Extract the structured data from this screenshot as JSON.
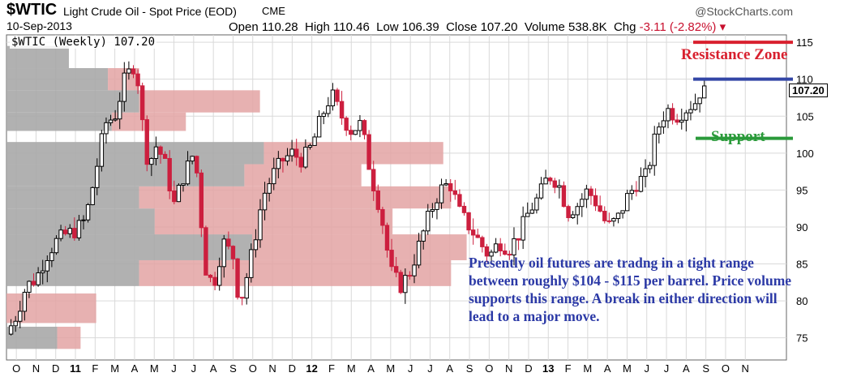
{
  "header": {
    "symbol": "$WTIC",
    "description": "Light Crude Oil - Spot Price (EOD)",
    "exchange": "CME",
    "date": "10-Sep-2013",
    "credit": "@StockCharts.com",
    "open_label": "Open",
    "open_value": "110.28",
    "high_label": "High",
    "high_value": "110.46",
    "low_label": "Low",
    "low_value": "106.39",
    "close_label": "Close",
    "close_value": "107.20",
    "volume_label": "Volume",
    "volume_value": "538.8K",
    "chg_label": "Chg",
    "chg_value": "-3.11 (-2.82%)",
    "chg_arrow": "▾"
  },
  "legend_label": "$WTIC (Weekly) 107.20",
  "price_tag": "107.20",
  "annotations": {
    "resistance": "Resistance Zone",
    "support": "Support",
    "commentary": "Presently oil futures are tradng in a tight range between roughly $104 - $115 per barrel. Price volume supports this range. A break in either direction will lead to a major move."
  },
  "colors": {
    "up": "#000000",
    "down": "#cc1f3e",
    "volume_up": "#a9a9a9",
    "volume_down": "#e3a3a3",
    "resistance": "#d8202e",
    "resistance_lower": "#3346a6",
    "support": "#2a9a3a",
    "grid": "#d9d9d9"
  },
  "chart_data": {
    "type": "candlestick",
    "title": "$WTIC (Weekly) 107.20",
    "ylim": [
      72,
      116
    ],
    "yticks": [
      75,
      80,
      85,
      90,
      95,
      100,
      105,
      110,
      115
    ],
    "x_month_labels": [
      {
        "label": "O",
        "t": 0.5
      },
      {
        "label": "N",
        "t": 1.5
      },
      {
        "label": "D",
        "t": 2.5
      },
      {
        "label": "11",
        "t": 3.5
      },
      {
        "label": "F",
        "t": 4.5
      },
      {
        "label": "M",
        "t": 5.5
      },
      {
        "label": "A",
        "t": 6.5
      },
      {
        "label": "M",
        "t": 7.5
      },
      {
        "label": "J",
        "t": 8.5
      },
      {
        "label": "J",
        "t": 9.5
      },
      {
        "label": "A",
        "t": 10.5
      },
      {
        "label": "S",
        "t": 11.5
      },
      {
        "label": "O",
        "t": 12.5
      },
      {
        "label": "N",
        "t": 13.5
      },
      {
        "label": "D",
        "t": 14.5
      },
      {
        "label": "12",
        "t": 15.5
      },
      {
        "label": "F",
        "t": 16.5
      },
      {
        "label": "M",
        "t": 17.5
      },
      {
        "label": "A",
        "t": 18.5
      },
      {
        "label": "M",
        "t": 19.5
      },
      {
        "label": "J",
        "t": 20.5
      },
      {
        "label": "J",
        "t": 21.5
      },
      {
        "label": "A",
        "t": 22.5
      },
      {
        "label": "S",
        "t": 23.5
      },
      {
        "label": "O",
        "t": 24.5
      },
      {
        "label": "N",
        "t": 25.5
      },
      {
        "label": "D",
        "t": 26.5
      },
      {
        "label": "13",
        "t": 27.5
      },
      {
        "label": "F",
        "t": 28.5
      },
      {
        "label": "M",
        "t": 29.5
      },
      {
        "label": "A",
        "t": 30.5
      },
      {
        "label": "M",
        "t": 31.5
      },
      {
        "label": "J",
        "t": 32.5
      },
      {
        "label": "J",
        "t": 33.5
      },
      {
        "label": "A",
        "t": 34.5
      },
      {
        "label": "S",
        "t": 35.5
      },
      {
        "label": "O",
        "t": 36.5
      },
      {
        "label": "N",
        "t": 37.5
      }
    ],
    "price_path": [
      [
        0.0,
        75.5
      ],
      [
        0.5,
        78
      ],
      [
        1.0,
        82
      ],
      [
        1.5,
        83
      ],
      [
        2.0,
        86
      ],
      [
        2.5,
        88
      ],
      [
        3.0,
        89
      ],
      [
        3.5,
        89.5
      ],
      [
        4.0,
        91
      ],
      [
        4.5,
        97
      ],
      [
        5.0,
        104
      ],
      [
        5.5,
        105
      ],
      [
        6.0,
        110
      ],
      [
        6.5,
        112
      ],
      [
        6.8,
        108
      ],
      [
        7.0,
        100
      ],
      [
        7.3,
        99
      ],
      [
        7.6,
        101
      ],
      [
        8.0,
        99
      ],
      [
        8.5,
        93
      ],
      [
        9.0,
        97
      ],
      [
        9.5,
        100
      ],
      [
        9.8,
        95
      ],
      [
        10.0,
        85
      ],
      [
        10.5,
        82
      ],
      [
        11.0,
        88
      ],
      [
        11.5,
        86
      ],
      [
        11.8,
        80
      ],
      [
        12.0,
        81
      ],
      [
        12.5,
        87
      ],
      [
        13.0,
        94
      ],
      [
        13.5,
        97
      ],
      [
        14.0,
        99
      ],
      [
        14.5,
        100
      ],
      [
        15.0,
        99
      ],
      [
        15.5,
        101
      ],
      [
        16.0,
        105
      ],
      [
        16.5,
        108
      ],
      [
        17.0,
        105
      ],
      [
        17.5,
        103
      ],
      [
        18.0,
        104
      ],
      [
        18.5,
        97
      ],
      [
        19.0,
        92
      ],
      [
        19.5,
        84
      ],
      [
        20.0,
        82
      ],
      [
        20.5,
        84
      ],
      [
        21.0,
        88
      ],
      [
        21.5,
        92
      ],
      [
        22.0,
        95
      ],
      [
        22.5,
        96
      ],
      [
        23.0,
        92
      ],
      [
        23.5,
        90
      ],
      [
        24.0,
        88
      ],
      [
        24.5,
        86
      ],
      [
        25.0,
        88
      ],
      [
        25.5,
        87
      ],
      [
        26.0,
        89
      ],
      [
        26.5,
        92
      ],
      [
        27.0,
        94
      ],
      [
        27.5,
        97
      ],
      [
        28.0,
        96
      ],
      [
        28.5,
        92
      ],
      [
        29.0,
        93
      ],
      [
        29.5,
        95
      ],
      [
        30.0,
        93
      ],
      [
        30.5,
        90
      ],
      [
        31.0,
        91
      ],
      [
        31.5,
        94
      ],
      [
        32.0,
        96
      ],
      [
        32.5,
        97
      ],
      [
        33.0,
        103
      ],
      [
        33.5,
        106
      ],
      [
        34.0,
        105
      ],
      [
        34.5,
        106
      ],
      [
        35.0,
        107
      ],
      [
        35.3,
        109
      ],
      [
        35.6,
        107.2
      ]
    ],
    "volume_by_price": [
      {
        "low": 73.5,
        "high": 76.5,
        "up": 0.13,
        "down": 0.06
      },
      {
        "low": 77.0,
        "high": 81.0,
        "up": 0.0,
        "down": 0.23
      },
      {
        "low": 82.0,
        "high": 85.5,
        "up": 0.34,
        "down": 0.8
      },
      {
        "low": 85.5,
        "high": 89.0,
        "up": 0.63,
        "down": 0.55
      },
      {
        "low": 89.0,
        "high": 92.5,
        "up": 0.38,
        "down": 0.61
      },
      {
        "low": 92.5,
        "high": 95.5,
        "up": 0.34,
        "down": 0.8
      },
      {
        "low": 95.5,
        "high": 98.5,
        "up": 0.61,
        "down": 0.3
      },
      {
        "low": 98.5,
        "high": 101.5,
        "up": 0.66,
        "down": 0.46
      },
      {
        "low": 103.0,
        "high": 105.5,
        "up": 0.27,
        "down": 0.19
      },
      {
        "low": 105.5,
        "high": 108.5,
        "up": 0.34,
        "down": 0.31
      },
      {
        "low": 108.5,
        "high": 111.5,
        "up": 0.26,
        "down": 0.08
      },
      {
        "low": 111.5,
        "high": 114.5,
        "up": 0.16,
        "down": 0.0
      }
    ],
    "zones": {
      "resistance_top": 115,
      "resistance_bottom": 110,
      "support": 102
    }
  }
}
